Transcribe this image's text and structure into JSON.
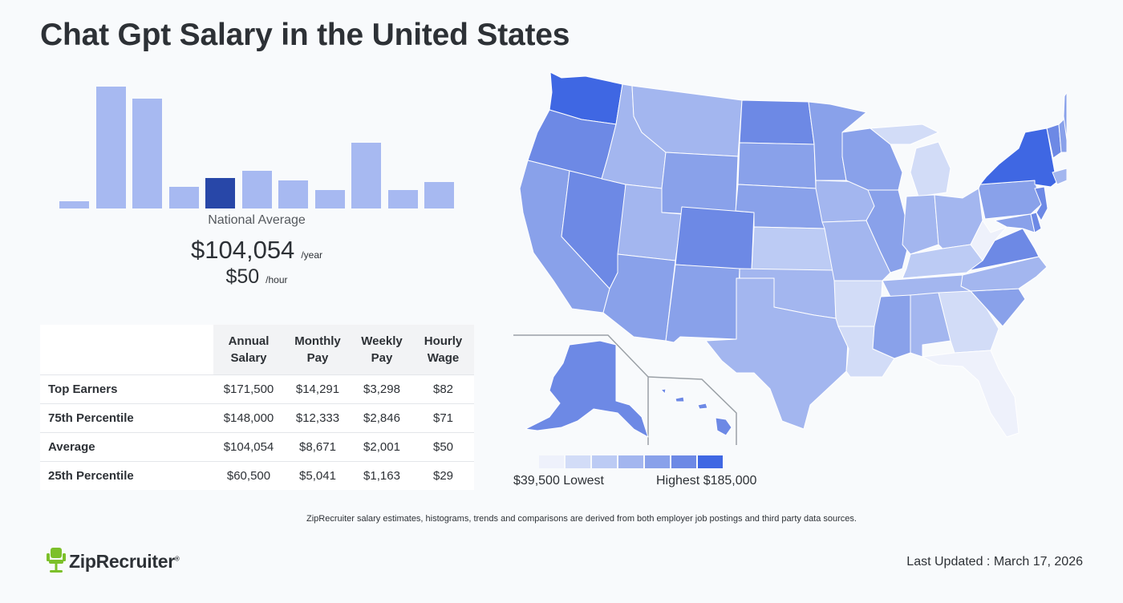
{
  "page": {
    "title": "Chat Gpt Salary in the United States"
  },
  "histogram": {
    "values": [
      0.06,
      1.0,
      0.9,
      0.18,
      0.25,
      0.31,
      0.23,
      0.15,
      0.54,
      0.15,
      0.22
    ],
    "highlight_index": 4,
    "bar_color": "#a7b9f1",
    "highlight_color": "#2847a8"
  },
  "summary": {
    "label": "National Average",
    "annual": "$104,054",
    "annual_unit": "/year",
    "hourly": "$50",
    "hourly_unit": "/hour"
  },
  "table": {
    "headers": [
      {
        "line1": "Annual",
        "line2": "Salary"
      },
      {
        "line1": "Monthly",
        "line2": "Pay"
      },
      {
        "line1": "Weekly",
        "line2": "Pay"
      },
      {
        "line1": "Hourly",
        "line2": "Wage"
      }
    ],
    "rows": [
      {
        "label": "Top Earners",
        "values": [
          "$171,500",
          "$14,291",
          "$3,298",
          "$82"
        ]
      },
      {
        "label": "75th Percentile",
        "values": [
          "$148,000",
          "$12,333",
          "$2,846",
          "$71"
        ]
      },
      {
        "label": "Average",
        "values": [
          "$104,054",
          "$8,671",
          "$2,001",
          "$50"
        ]
      },
      {
        "label": "25th Percentile",
        "values": [
          "$60,500",
          "$5,041",
          "$1,163",
          "$29"
        ]
      }
    ]
  },
  "map": {
    "legend_colors": [
      "#eef1fb",
      "#d2dcf7",
      "#bccbf4",
      "#a3b6ef",
      "#89a1ea",
      "#6d89e5",
      "#3f67e3"
    ],
    "legend_low": "$39,500 Lowest",
    "legend_high": "Highest $185,000"
  },
  "footer": {
    "disclaimer": "ZipRecruiter salary estimates, histograms, trends and comparisons are derived from both employer job postings and third party data sources.",
    "logo_text": "ZipRecruiter",
    "logo_mark": "®",
    "updated": "Last Updated : March 17, 2026"
  }
}
